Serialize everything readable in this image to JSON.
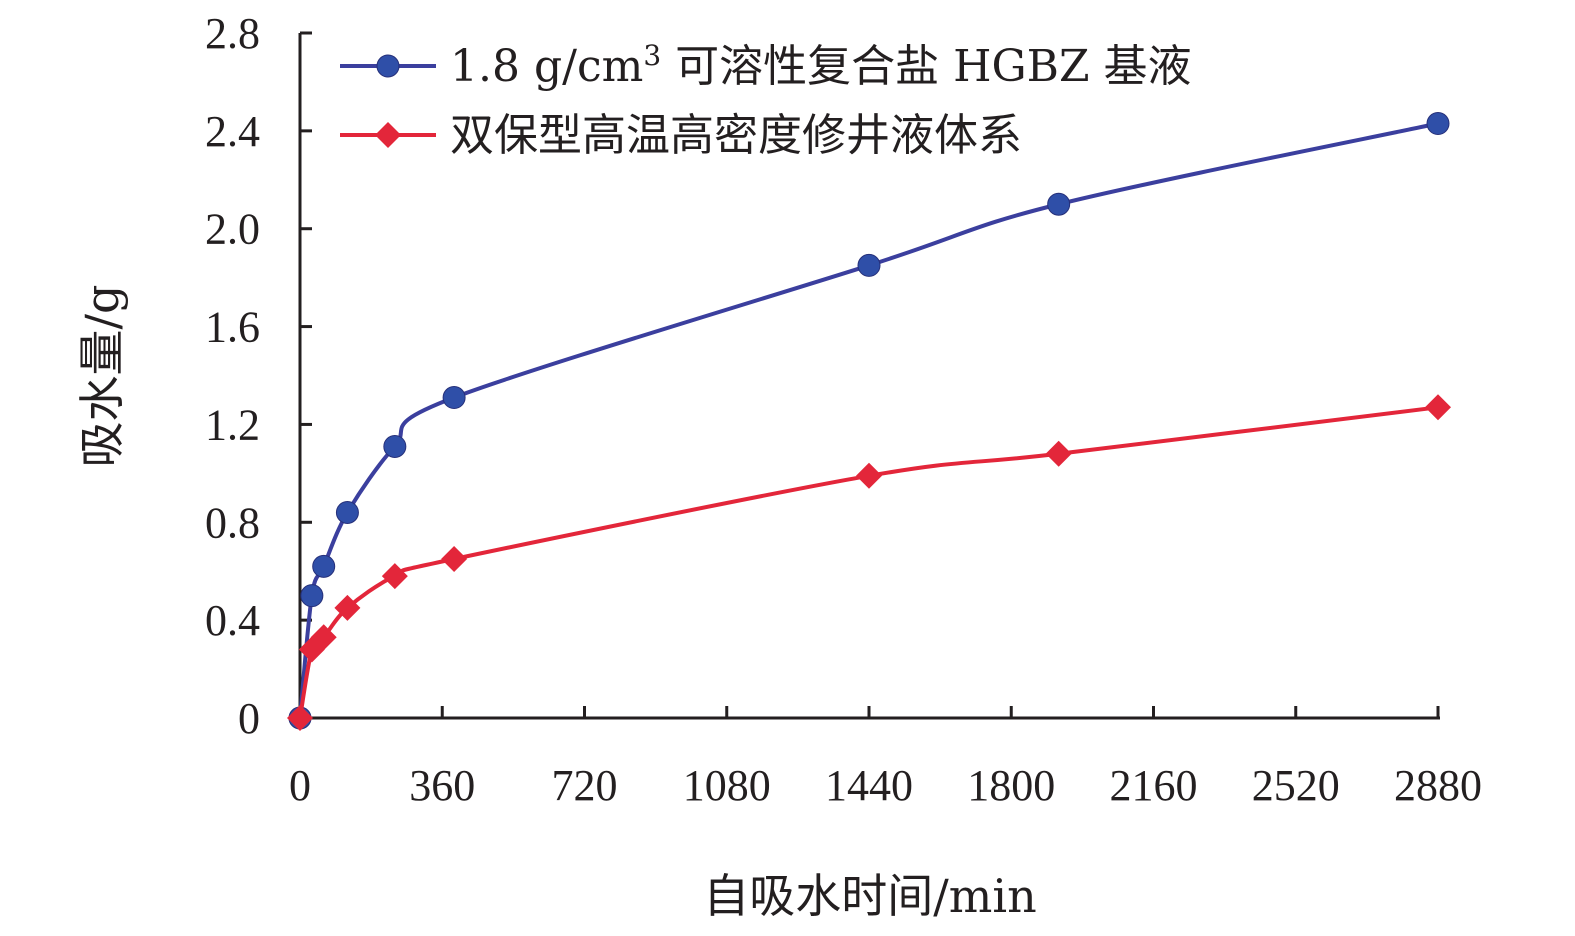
{
  "chart_data": {
    "type": "line",
    "xlabel": "自吸水时间/min",
    "ylabel": "吸水量/g",
    "xlim": [
      0,
      2880
    ],
    "ylim": [
      0,
      2.8
    ],
    "x_ticks": [
      0,
      360,
      720,
      1080,
      1440,
      1800,
      2160,
      2520,
      2880
    ],
    "x_tick_labels": [
      "0",
      "360",
      "720",
      "1080",
      "1440",
      "1800",
      "2160",
      "2520",
      "2880"
    ],
    "y_ticks": [
      0,
      0.4,
      0.8,
      1.2,
      1.6,
      2.0,
      2.4,
      2.8
    ],
    "y_tick_labels": [
      "0",
      "0.4",
      "0.8",
      "1.2",
      "1.6",
      "2.0",
      "2.4",
      "2.8"
    ],
    "grid": false,
    "legend_position": "top-left",
    "series": [
      {
        "name": "1.8 g/cm³ 可溶性复合盐 HGBZ 基液",
        "legend_main": "1.8 g/cm",
        "legend_sup": "3",
        "legend_rest": " 可溶性复合盐 HGBZ 基液",
        "color": "#3b3f9e",
        "marker": "circle",
        "marker_color": "#2f4fa8",
        "x": [
          0,
          30,
          60,
          120,
          240,
          390,
          1440,
          1920,
          2880
        ],
        "y": [
          0,
          0.5,
          0.62,
          0.84,
          1.11,
          1.31,
          1.85,
          2.1,
          2.43
        ]
      },
      {
        "name": "双保型高温高密度修井液体系",
        "color": "#e3263a",
        "marker": "diamond",
        "marker_color": "#e3263a",
        "x": [
          0,
          30,
          60,
          120,
          240,
          390,
          1440,
          1920,
          2880
        ],
        "y": [
          0,
          0.28,
          0.33,
          0.45,
          0.58,
          0.65,
          0.99,
          1.08,
          1.27
        ]
      }
    ]
  }
}
